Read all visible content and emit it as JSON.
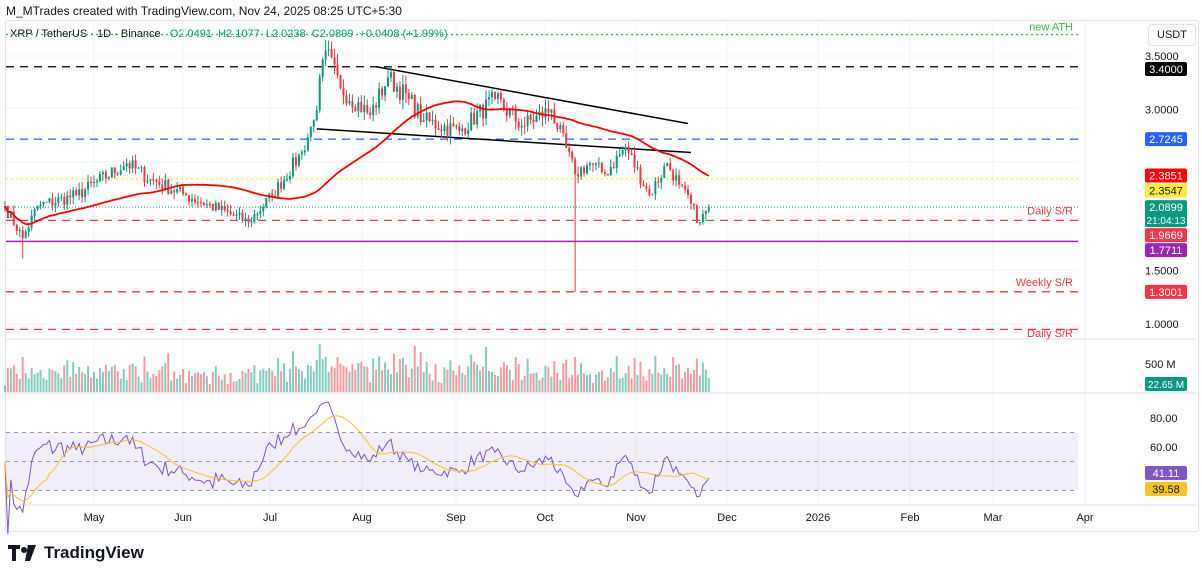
{
  "header": {
    "attribution": "M_MTrades created with TradingView.com, Nov 24, 2025 08:25 UTC+5:30"
  },
  "legend": {
    "symbol": "XRP / TetherUS · 1D · Binance",
    "open": "O2.0491",
    "high": "H2.1077",
    "low": "L2.0238",
    "close": "C2.0899",
    "change": "+0.0408 (+1.99%)"
  },
  "currency": "USDT",
  "brand": "TradingView",
  "colors": {
    "up": "#089981",
    "down": "#f23645",
    "ma": "#ff0000",
    "rsi": "#7e57c2",
    "rsi_ma": "#f7c325"
  },
  "chart_data": [
    {
      "type": "candlestick",
      "title": "",
      "xlabels": [
        "May",
        "Jun",
        "Jul",
        "Aug",
        "Sep",
        "Oct",
        "Nov",
        "Dec",
        "2026",
        "Feb",
        "Mar",
        "Apr"
      ],
      "yticks": [
        "3.5000",
        "3.0000",
        "1.5000",
        "1.0000"
      ],
      "close_keypoints": [
        [
          "2025-04-01",
          2.1
        ],
        [
          "2025-04-07",
          1.8
        ],
        [
          "2025-04-12",
          2.1
        ],
        [
          "2025-04-25",
          2.2
        ],
        [
          "2025-05-12",
          2.5
        ],
        [
          "2025-05-20",
          2.35
        ],
        [
          "2025-06-01",
          2.2
        ],
        [
          "2025-06-22",
          1.95
        ],
        [
          "2025-06-30",
          2.2
        ],
        [
          "2025-07-10",
          2.6
        ],
        [
          "2025-07-14",
          2.9
        ],
        [
          "2025-07-18",
          3.55
        ],
        [
          "2025-07-23",
          3.2
        ],
        [
          "2025-08-02",
          2.95
        ],
        [
          "2025-08-08",
          3.3
        ],
        [
          "2025-08-15",
          3.1
        ],
        [
          "2025-08-20",
          2.9
        ],
        [
          "2025-09-01",
          2.8
        ],
        [
          "2025-09-13",
          3.1
        ],
        [
          "2025-09-22",
          2.85
        ],
        [
          "2025-10-02",
          3.0
        ],
        [
          "2025-10-10",
          2.4
        ],
        [
          "2025-10-15",
          2.5
        ],
        [
          "2025-10-20",
          2.4
        ],
        [
          "2025-10-27",
          2.65
        ],
        [
          "2025-11-04",
          2.2
        ],
        [
          "2025-11-10",
          2.5
        ],
        [
          "2025-11-14",
          2.3
        ],
        [
          "2025-11-21",
          1.95
        ],
        [
          "2025-11-24",
          2.0899
        ]
      ],
      "extreme_wicks": [
        [
          "2025-04-07",
          1.61
        ],
        [
          "2025-07-18",
          3.65
        ],
        [
          "2025-10-10",
          1.3
        ]
      ],
      "trendlines": [
        {
          "from": [
            "2025-08-04",
            3.4
          ],
          "to": [
            "2025-11-17",
            2.87
          ]
        },
        {
          "from": [
            "2025-07-15",
            2.82
          ],
          "to": [
            "2025-11-18",
            2.6
          ]
        }
      ],
      "levels": [
        {
          "value": 3.7,
          "label": "new ATH",
          "color": "#4caf50",
          "style": "dotted"
        },
        {
          "value": 3.4,
          "label": "3.4000",
          "color": "#000000",
          "style": "dashed"
        },
        {
          "value": 2.7245,
          "label": "2.7245",
          "color": "#2962ff",
          "style": "dashed"
        },
        {
          "value": 2.3851,
          "label": "2.3851",
          "color": "#ff0000",
          "style": "ma"
        },
        {
          "value": 2.3547,
          "label": "2.3547",
          "color": "#ffeb3b",
          "style": "dotted"
        },
        {
          "value": 2.0899,
          "label": "2.0899",
          "sublabel": "21:04:13",
          "color": "#089981",
          "style": "last"
        },
        {
          "value": 1.9669,
          "label": "1.9669",
          "text": "Daily S/R",
          "color": "#f23645",
          "style": "dashed"
        },
        {
          "value": 1.7711,
          "label": "1.7711",
          "color": "#9c27b0",
          "style": "solid"
        },
        {
          "value": 1.3001,
          "label": "1.3001",
          "text": "Weekly S/R",
          "color": "#f23645",
          "style": "dashed"
        },
        {
          "value": 0.95,
          "text": "Daily S/R",
          "color": "#f23645",
          "style": "dashed"
        }
      ],
      "ma_period": 50
    },
    {
      "type": "bar",
      "title": "Volume",
      "ytick": "500 M",
      "last": "22.65 M"
    },
    {
      "type": "line",
      "title": "RSI",
      "yticks": [
        "80.00",
        "60.00"
      ],
      "band": [
        30,
        70
      ],
      "rsi": "41.11",
      "rsi_ma": "39.58"
    }
  ]
}
